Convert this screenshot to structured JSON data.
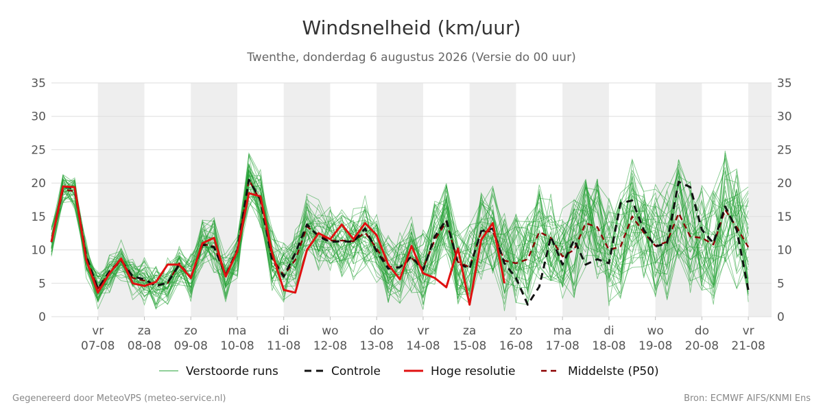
{
  "title": "Windsnelheid (km/uur)",
  "subtitle": "Twenthe, donderdag  6 augustus 2026 (Versie do 00 uur)",
  "footer_left": "Gegenereerd door MeteoVPS (meteo-service.nl)",
  "footer_right": "Bron: ECMWF AIFS/KNMI Ens",
  "colors": {
    "ensemble": "#22a033",
    "control": "#111111",
    "hires": "#e01010",
    "median": "#8b0000",
    "shade": "#eeeeee",
    "grid": "#dddddd"
  },
  "legend": [
    {
      "label": "Verstoorde runs",
      "style": "ensemble"
    },
    {
      "label": "Controle",
      "style": "control"
    },
    {
      "label": "Hoge resolutie",
      "style": "hires"
    },
    {
      "label": "Middelste (P50)",
      "style": "median"
    }
  ],
  "chart_data": {
    "type": "line",
    "ylim": [
      0,
      35
    ],
    "yticks": [
      0,
      5,
      10,
      15,
      20,
      25,
      30,
      35
    ],
    "x_start_day": 0,
    "x_end_day": 15.5,
    "x_step_hours": 6,
    "day_labels": [
      {
        "day": "vr",
        "date": "07-08"
      },
      {
        "day": "za",
        "date": "08-08"
      },
      {
        "day": "zo",
        "date": "09-08"
      },
      {
        "day": "ma",
        "date": "10-08"
      },
      {
        "day": "di",
        "date": "11-08"
      },
      {
        "day": "wo",
        "date": "12-08"
      },
      {
        "day": "do",
        "date": "13-08"
      },
      {
        "day": "vr",
        "date": "14-08"
      },
      {
        "day": "za",
        "date": "15-08"
      },
      {
        "day": "zo",
        "date": "16-08"
      },
      {
        "day": "ma",
        "date": "17-08"
      },
      {
        "day": "di",
        "date": "18-08"
      },
      {
        "day": "wo",
        "date": "19-08"
      },
      {
        "day": "do",
        "date": "20-08"
      },
      {
        "day": "vr",
        "date": "21-08"
      }
    ],
    "shaded_days": [
      "za",
      "ma",
      "wo",
      "vr",
      "zo",
      "di",
      "do"
    ],
    "series": [
      {
        "name": "Controle",
        "style": "control",
        "values": [
          11.2,
          19.5,
          19.2,
          9.0,
          4.2,
          6.8,
          8.5,
          6.0,
          5.6,
          4.6,
          5.1,
          7.8,
          5.8,
          10.8,
          10.4,
          6.2,
          10.0,
          20.5,
          17.5,
          8.5,
          6.0,
          9.5,
          13.8,
          12.0,
          11.2,
          11.3,
          11.2,
          13.2,
          9.8,
          7.2,
          7.4,
          9.0,
          7.0,
          12.0,
          14.5,
          8.0,
          7.2,
          12.8,
          13.2,
          8.0,
          5.8,
          1.8,
          4.5,
          12.0,
          7.8,
          11.5,
          7.8,
          8.6,
          8.0,
          17.0,
          17.4,
          13.0,
          10.5,
          11.0,
          20.2,
          19.4,
          13.0,
          11.0,
          16.5,
          13.0,
          4.0
        ]
      },
      {
        "name": "Hoge resolutie",
        "style": "hires",
        "values": [
          11.2,
          19.5,
          19.4,
          8.5,
          3.6,
          6.5,
          8.7,
          5.0,
          4.6,
          5.2,
          7.8,
          7.8,
          5.8,
          11.0,
          11.8,
          6.0,
          9.8,
          18.5,
          18.0,
          9.5,
          4.0,
          3.6,
          10.0,
          12.5,
          11.6,
          13.8,
          11.6,
          14.0,
          12.2,
          7.8,
          5.6,
          10.6,
          6.5,
          5.8,
          4.4,
          10.2,
          1.8,
          11.5,
          14.0,
          5.0
        ]
      },
      {
        "name": "Middelste (P50)",
        "style": "median",
        "values": [
          11.2,
          19.0,
          18.8,
          8.8,
          4.2,
          6.6,
          8.4,
          5.8,
          5.4,
          4.7,
          5.0,
          8.0,
          5.9,
          10.9,
          10.5,
          6.3,
          9.6,
          20.5,
          17.3,
          8.8,
          6.2,
          8.5,
          13.5,
          12.2,
          11.4,
          11.4,
          11.3,
          12.6,
          10.2,
          7.5,
          7.4,
          8.8,
          7.2,
          11.5,
          14.2,
          8.2,
          7.4,
          12.7,
          12.8,
          8.4,
          8.0,
          8.6,
          12.7,
          11.8,
          9.0,
          10.0,
          14.0,
          13.4,
          10.0,
          10.5,
          15.0,
          12.6,
          10.6,
          11.2,
          15.5,
          12.0,
          11.8,
          10.8,
          16.0,
          13.4,
          10.4
        ]
      }
    ]
  }
}
